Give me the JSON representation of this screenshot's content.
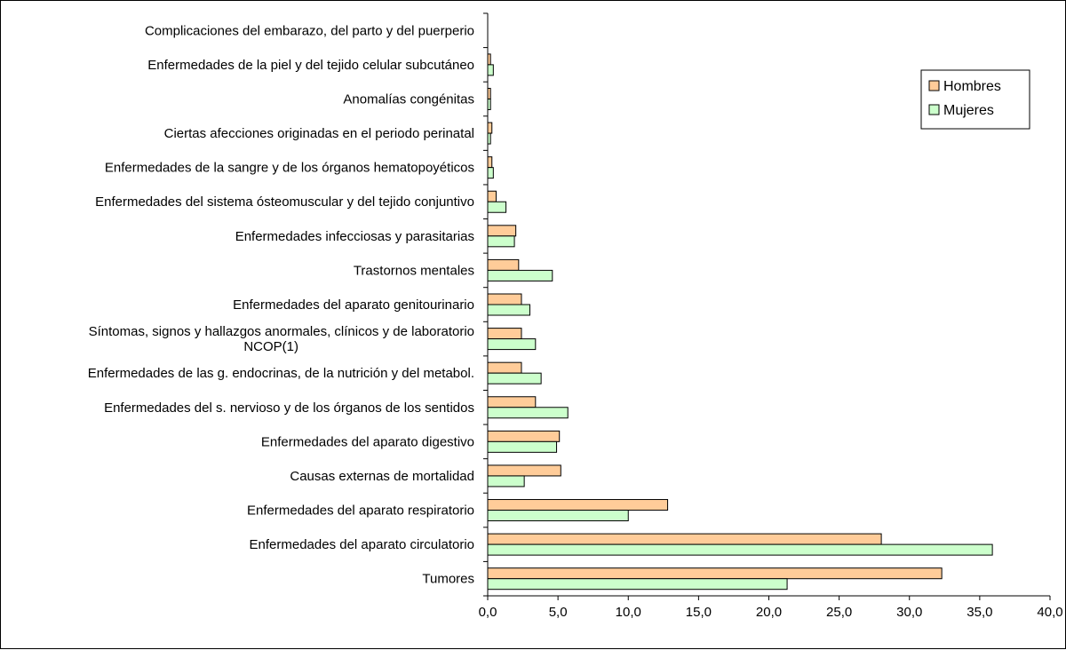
{
  "chart_data": {
    "type": "bar",
    "orientation": "horizontal",
    "categories": [
      "Complicaciones del embarazo, del parto y del puerperio",
      "Enfermedades de la piel y del tejido celular subcutáneo",
      "Anomalías congénitas",
      "Ciertas afecciones originadas en el periodo perinatal",
      "Enfermedades de la sangre y de los órganos hematopoyéticos",
      "Enfermedades del sistema ósteomuscular y del tejido conjuntivo",
      "Enfermedades infecciosas y parasitarias",
      "Trastornos mentales",
      "Enfermedades del aparato genitourinario",
      "Síntomas, signos y hallazgos anormales, clínicos y de laboratorio NCOP(1)",
      "Enfermedades de las g. endocrinas, de la nutrición y del metabol.",
      "Enfermedades del s. nervioso y de los órganos de los sentidos",
      "Enfermedades del aparato digestivo",
      "Causas externas de mortalidad",
      "Enfermedades del aparato respiratorio",
      "Enfermedades del aparato circulatorio",
      "Tumores"
    ],
    "category_lines": [
      [
        "Complicaciones del embarazo, del parto y del puerperio"
      ],
      [
        "Enfermedades de la piel y del tejido celular subcutáneo"
      ],
      [
        "Anomalías congénitas"
      ],
      [
        "Ciertas afecciones originadas en el periodo perinatal"
      ],
      [
        "Enfermedades de la sangre y de los órganos hematopoyéticos"
      ],
      [
        "Enfermedades del sistema ósteomuscular y del tejido conjuntivo"
      ],
      [
        "Enfermedades infecciosas y parasitarias"
      ],
      [
        "Trastornos mentales"
      ],
      [
        "Enfermedades del aparato genitourinario"
      ],
      [
        "Síntomas, signos y hallazgos anormales, clínicos y de laboratorio",
        "NCOP(1)"
      ],
      [
        "Enfermedades de las g. endocrinas, de la nutrición y del metabol."
      ],
      [
        "Enfermedades del s. nervioso y de los órganos de los sentidos"
      ],
      [
        "Enfermedades del aparato digestivo"
      ],
      [
        "Causas externas de mortalidad"
      ],
      [
        "Enfermedades del aparato respiratorio"
      ],
      [
        "Enfermedades del aparato circulatorio"
      ],
      [
        "Tumores"
      ]
    ],
    "series": [
      {
        "name": "Hombres",
        "color": "#FFCC99",
        "values": [
          0.0,
          0.2,
          0.2,
          0.3,
          0.3,
          0.6,
          2.0,
          2.2,
          2.4,
          2.4,
          2.4,
          3.4,
          5.1,
          5.2,
          12.8,
          28.0,
          32.3
        ]
      },
      {
        "name": "Mujeres",
        "color": "#CCFFCC",
        "values": [
          0.0,
          0.4,
          0.2,
          0.2,
          0.4,
          1.3,
          1.9,
          4.6,
          3.0,
          3.4,
          3.8,
          5.7,
          4.9,
          2.6,
          10.0,
          35.9,
          21.3
        ]
      }
    ],
    "xlim": [
      0,
      40
    ],
    "xticks": [
      "0,0",
      "5,0",
      "10,0",
      "15,0",
      "20,0",
      "25,0",
      "30,0",
      "35,0",
      "40,0"
    ],
    "grid": false,
    "legend_position": "top-right",
    "title": "",
    "xlabel": "",
    "ylabel": ""
  }
}
